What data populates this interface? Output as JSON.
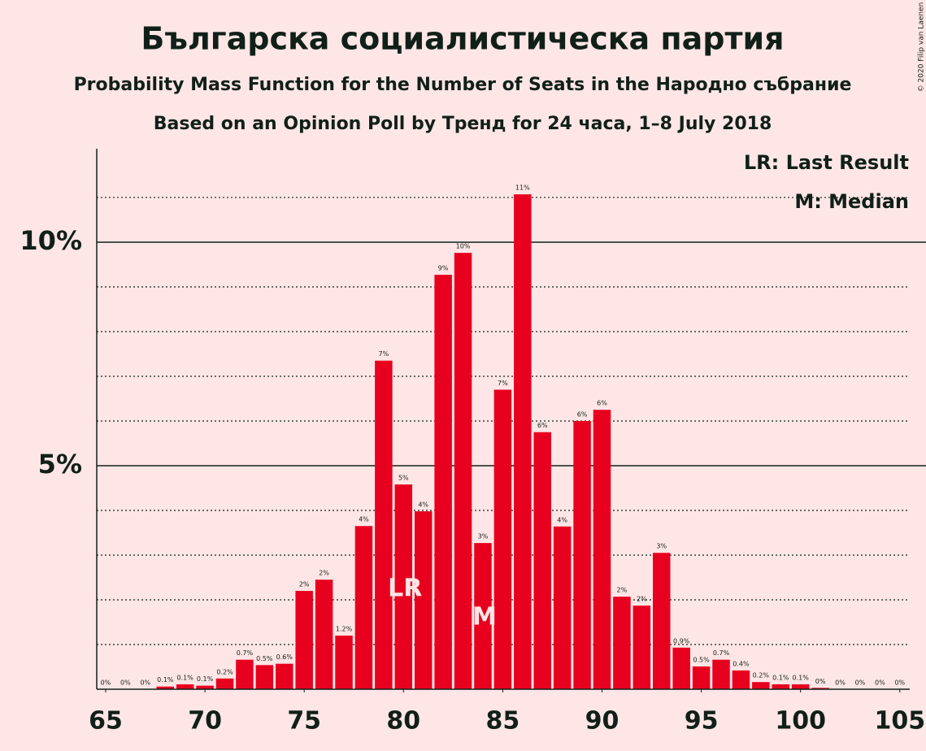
{
  "chart_data": {
    "type": "bar",
    "title": "Българска социалистическа партия",
    "subtitle": "Probability Mass Function for the Number of Seats in the Народно събрание",
    "subtitle2": "Based on an Opinion Poll by Тренд for 24 часа, 1–8 July 2018",
    "copyright": "© 2020 Filip van Laenen",
    "x": [
      65,
      66,
      67,
      68,
      69,
      70,
      71,
      72,
      73,
      74,
      75,
      76,
      77,
      78,
      79,
      80,
      81,
      82,
      83,
      84,
      85,
      86,
      87,
      88,
      89,
      90,
      91,
      92,
      93,
      94,
      95,
      96,
      97,
      98,
      99,
      100,
      101,
      102,
      103,
      104,
      105
    ],
    "values": [
      0,
      0,
      0,
      0.06,
      0.11,
      0.08,
      0.24,
      0.66,
      0.54,
      0.57,
      2.2,
      2.45,
      1.2,
      3.65,
      7.35,
      4.58,
      3.98,
      9.27,
      9.76,
      3.27,
      6.7,
      11.07,
      5.75,
      3.64,
      6.0,
      6.25,
      2.07,
      1.87,
      3.05,
      0.93,
      0.51,
      0.66,
      0.42,
      0.16,
      0.11,
      0.11,
      0.03,
      0,
      0,
      0,
      0
    ],
    "value_labels": [
      "0%",
      "0%",
      "0%",
      "0.1%",
      "0.1%",
      "0.1%",
      "0.2%",
      "0.7%",
      "0.5%",
      "0.6%",
      "2%",
      "2%",
      "1.2%",
      "4%",
      "7%",
      "5%",
      "4%",
      "9%",
      "10%",
      "3%",
      "7%",
      "11%",
      "6%",
      "4%",
      "6%",
      "6%",
      "2%",
      "2%",
      "3%",
      "0.9%",
      "0.5%",
      "0.7%",
      "0.4%",
      "0.2%",
      "0.1%",
      "0.1%",
      "0%",
      "0%",
      "0%",
      "0%",
      "0%"
    ],
    "color": "#e8001f",
    "xlim": [
      64.55,
      105.5
    ],
    "xticks": [
      65,
      70,
      75,
      80,
      85,
      90,
      95,
      100,
      105
    ],
    "ylim": [
      0,
      12.09
    ],
    "yticks": [
      {
        "value": 5,
        "label": "5%"
      },
      {
        "value": 10,
        "label": "10%"
      }
    ],
    "yminor": [
      1,
      2,
      3,
      4,
      6,
      7,
      8,
      9,
      11
    ],
    "grid": true,
    "annotations": [
      {
        "label": "LR",
        "x": 80
      },
      {
        "label": "M",
        "x": 84
      }
    ],
    "legend": [
      "LR: Last Result",
      "M: Median"
    ],
    "legend_position": "upper right"
  }
}
